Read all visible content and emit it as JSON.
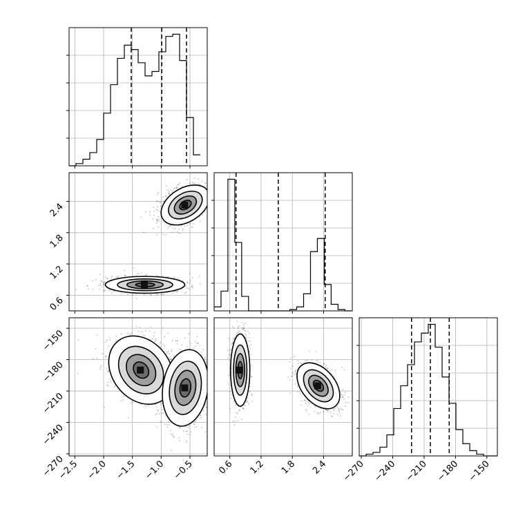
{
  "chart_data": {
    "type": "corner",
    "parameters": [
      {
        "name": "",
        "range": [
          -2.6,
          -0.2
        ],
        "ticks": [
          -2.5,
          -2.0,
          -1.5,
          -1.0,
          -0.5
        ],
        "tick_labels": [
          "−2.5",
          "−2.0",
          "−1.5",
          "−1.0",
          "−0.5"
        ],
        "quantiles": [
          -1.52,
          -0.99,
          -0.56
        ]
      },
      {
        "name": "",
        "range": [
          0.3,
          2.95
        ],
        "ticks": [
          0.6,
          1.2,
          1.8,
          2.4
        ],
        "tick_labels": [
          "0.6",
          "1.2",
          "1.8",
          "2.4"
        ],
        "quantiles": [
          0.72,
          1.53,
          2.43
        ]
      },
      {
        "name": "",
        "range": [
          -272,
          -140
        ],
        "ticks": [
          -270,
          -240,
          -210,
          -180,
          -150
        ],
        "tick_labels": [
          "−270",
          "−240",
          "−210",
          "−180",
          "−150"
        ],
        "quantiles": [
          -222,
          -204,
          -186
        ]
      }
    ],
    "histograms": [
      {
        "param": 0,
        "bin_start": -2.6,
        "bin_width": 0.12,
        "counts": [
          0,
          1,
          3,
          6,
          12,
          24,
          37,
          49,
          55,
          53,
          47,
          41,
          43,
          52,
          59,
          60,
          48,
          22,
          5
        ]
      },
      {
        "param": 1,
        "bin_start": 0.3,
        "bin_width": 0.132,
        "counts": [
          3,
          15,
          100,
          52,
          11,
          0,
          0,
          0,
          0,
          0,
          0,
          1,
          3,
          13,
          45,
          55,
          20,
          5,
          1,
          0
        ]
      },
      {
        "param": 2,
        "bin_start": -272,
        "bin_width": 6.6,
        "counts": [
          0,
          1,
          2,
          5,
          12,
          27,
          40,
          52,
          65,
          70,
          75,
          62,
          45,
          30,
          15,
          7,
          3,
          1,
          0,
          0
        ]
      }
    ],
    "scatter_blobs": [
      {
        "panel": [
          0,
          1
        ],
        "center": [
          -1.28,
          0.8
        ],
        "spread": [
          0.3,
          0.07
        ],
        "rotation": 0
      },
      {
        "panel": [
          0,
          1
        ],
        "center": [
          -0.58,
          2.33
        ],
        "spread": [
          0.2,
          0.14
        ],
        "rotation": -0.55
      },
      {
        "panel": [
          0,
          2
        ],
        "center": [
          -1.35,
          -190
        ],
        "spread": [
          0.28,
          12
        ],
        "rotation": 0.9
      },
      {
        "panel": [
          0,
          2
        ],
        "center": [
          -0.58,
          -207
        ],
        "spread": [
          0.17,
          16
        ],
        "rotation": 0.15
      },
      {
        "panel": [
          1,
          2
        ],
        "center": [
          0.8,
          -190
        ],
        "spread": [
          0.08,
          15
        ],
        "rotation": 0
      },
      {
        "panel": [
          1,
          2
        ],
        "center": [
          2.3,
          -205
        ],
        "spread": [
          0.14,
          11
        ],
        "rotation": -0.7
      }
    ],
    "grid": true,
    "legend": "none"
  }
}
